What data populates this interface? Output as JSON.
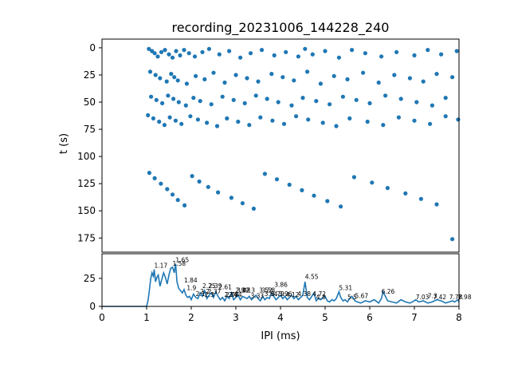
{
  "chart_data": [
    {
      "type": "scatter",
      "title": "recording_20231006_144228_240",
      "xlabel": "",
      "ylabel": "t (s)",
      "xlim": [
        0,
        8
      ],
      "ylim": [
        188,
        -8
      ],
      "y_inverted": true,
      "yticks": [
        "0",
        "25",
        "50",
        "75",
        "100",
        "125",
        "150",
        "175"
      ],
      "xticks_shown": false,
      "marker_color": "#1f77b4",
      "note_density": "events dense for IPI 1-2 ms, sparse out to 8 ms; gaps near t=10-15, t=85-90, t=100-105",
      "series": [
        {
          "x": [
            1.05,
            1.12,
            1.18,
            1.25,
            1.33,
            1.41,
            1.5,
            1.58,
            1.66,
            1.75,
            1.84,
            1.95,
            2.08,
            2.25,
            2.4,
            2.63,
            2.85,
            3.1,
            3.33,
            3.58,
            3.86,
            4.12,
            4.4,
            4.55,
            4.72,
            5.0,
            5.31,
            5.6,
            5.9,
            6.26,
            6.6,
            7.0,
            7.3,
            7.6,
            7.95,
            1.08,
            1.2,
            1.3,
            1.45,
            1.55,
            1.62,
            1.7,
            1.9,
            2.1,
            2.3,
            2.5,
            2.75,
            3.0,
            3.25,
            3.5,
            3.8,
            4.05,
            4.3,
            4.6,
            4.9,
            5.2,
            5.5,
            5.85,
            6.2,
            6.55,
            6.9,
            7.2,
            7.5,
            7.85,
            1.1,
            1.22,
            1.35,
            1.48,
            1.6,
            1.72,
            1.88,
            2.05,
            2.2,
            2.45,
            2.7,
            2.95,
            3.2,
            3.45,
            3.7,
            3.95,
            4.25,
            4.5,
            4.8,
            5.1,
            5.4,
            5.7,
            6.0,
            6.35,
            6.7,
            7.05,
            7.4,
            7.7,
            1.03,
            1.15,
            1.28,
            1.4,
            1.52,
            1.65,
            1.78,
            1.98,
            2.15,
            2.35,
            2.58,
            2.8,
            3.05,
            3.3,
            3.55,
            3.82,
            4.08,
            4.35,
            4.62,
            4.95,
            5.25,
            5.55,
            5.95,
            6.3,
            6.65,
            7.0,
            7.35,
            7.7,
            7.98,
            1.06,
            1.18,
            1.32,
            1.46,
            1.58,
            1.7,
            1.85,
            2.02,
            2.18,
            2.38,
            2.6,
            2.9,
            3.15,
            3.4,
            3.65,
            3.92,
            4.2,
            4.48,
            4.75,
            5.05,
            5.35,
            5.65,
            6.05,
            6.4,
            6.8,
            7.15,
            7.5,
            7.85
          ],
          "y": [
            1,
            3,
            5,
            8,
            4,
            2,
            6,
            9,
            3,
            7,
            2,
            5,
            8,
            4,
            1,
            6,
            3,
            9,
            5,
            2,
            7,
            4,
            8,
            1,
            6,
            3,
            9,
            2,
            5,
            8,
            4,
            7,
            2,
            6,
            3,
            22,
            25,
            28,
            31,
            24,
            27,
            30,
            33,
            26,
            29,
            23,
            32,
            25,
            28,
            31,
            24,
            27,
            30,
            22,
            33,
            26,
            29,
            23,
            32,
            25,
            28,
            31,
            24,
            27,
            45,
            48,
            51,
            44,
            47,
            50,
            53,
            46,
            49,
            52,
            45,
            48,
            51,
            44,
            47,
            50,
            53,
            46,
            49,
            52,
            45,
            48,
            51,
            44,
            47,
            50,
            53,
            46,
            62,
            65,
            68,
            71,
            64,
            67,
            70,
            63,
            66,
            69,
            72,
            65,
            68,
            71,
            64,
            67,
            70,
            63,
            66,
            69,
            72,
            65,
            68,
            71,
            64,
            67,
            70,
            63,
            66,
            115,
            120,
            125,
            130,
            135,
            140,
            145,
            118,
            123,
            128,
            133,
            138,
            143,
            148,
            116,
            121,
            126,
            131,
            136,
            141,
            146,
            119,
            124,
            129,
            134,
            139,
            144,
            176
          ]
        }
      ]
    },
    {
      "type": "line",
      "title": "",
      "xlabel": "IPI (ms)",
      "ylabel": "",
      "xlim": [
        0,
        8
      ],
      "ylim": [
        0,
        47
      ],
      "xticks": [
        "0",
        "1",
        "2",
        "3",
        "4",
        "5",
        "6",
        "7",
        "8"
      ],
      "yticks": [
        "0",
        "25"
      ],
      "line_color": "#1f77b4",
      "series": [
        {
          "x": [
            0,
            0.5,
            1.0,
            1.03,
            1.06,
            1.09,
            1.12,
            1.15,
            1.17,
            1.2,
            1.23,
            1.26,
            1.3,
            1.34,
            1.38,
            1.42,
            1.46,
            1.5,
            1.54,
            1.58,
            1.62,
            1.65,
            1.68,
            1.72,
            1.76,
            1.8,
            1.84,
            1.88,
            1.92,
            1.96,
            2.0,
            2.05,
            2.1,
            2.15,
            2.2,
            2.25,
            2.3,
            2.35,
            2.4,
            2.45,
            2.5,
            2.55,
            2.6,
            2.65,
            2.7,
            2.75,
            2.8,
            2.85,
            2.9,
            2.95,
            3.0,
            3.05,
            3.1,
            3.15,
            3.2,
            3.25,
            3.3,
            3.35,
            3.4,
            3.45,
            3.5,
            3.55,
            3.6,
            3.65,
            3.7,
            3.75,
            3.8,
            3.85,
            3.9,
            3.95,
            4.0,
            4.05,
            4.1,
            4.15,
            4.2,
            4.25,
            4.3,
            4.35,
            4.4,
            4.45,
            4.5,
            4.55,
            4.6,
            4.65,
            4.7,
            4.75,
            4.8,
            4.85,
            4.9,
            4.95,
            5.0,
            5.05,
            5.1,
            5.15,
            5.2,
            5.25,
            5.31,
            5.35,
            5.4,
            5.45,
            5.5,
            5.55,
            5.6,
            5.67,
            5.72,
            5.8,
            5.9,
            6.0,
            6.1,
            6.2,
            6.26,
            6.3,
            6.4,
            6.5,
            6.6,
            6.7,
            6.8,
            6.9,
            7.0,
            7.03,
            7.1,
            7.2,
            7.3,
            7.4,
            7.5,
            7.6,
            7.7,
            7.78,
            7.85,
            7.9,
            7.98,
            8.0
          ],
          "y": [
            0,
            0,
            0,
            5,
            14,
            24,
            30,
            27,
            33,
            22,
            26,
            28,
            18,
            24,
            30,
            26,
            20,
            28,
            34,
            35,
            30,
            38,
            22,
            16,
            14,
            12,
            15,
            10,
            8,
            9,
            6,
            11,
            8,
            7,
            12,
            9,
            14,
            7,
            10,
            12,
            8,
            13,
            9,
            6,
            8,
            5,
            9,
            7,
            12,
            6,
            8,
            10,
            6,
            9,
            8,
            7,
            9,
            6,
            8,
            10,
            7,
            5,
            9,
            6,
            8,
            7,
            12,
            9,
            6,
            8,
            10,
            7,
            9,
            6,
            8,
            10,
            7,
            9,
            6,
            8,
            10,
            22,
            8,
            6,
            9,
            12,
            5,
            7,
            6,
            8,
            9,
            5,
            4,
            6,
            5,
            7,
            13,
            8,
            5,
            6,
            4,
            7,
            9,
            5,
            4,
            3,
            5,
            4,
            6,
            3,
            7,
            13,
            5,
            4,
            3,
            6,
            4,
            3,
            5,
            6,
            4,
            5,
            3,
            4,
            6,
            5,
            3,
            4,
            5,
            4,
            6,
            4
          ]
        }
      ],
      "annotations": [
        {
          "x": 1.17,
          "y": 33,
          "text": "1.17"
        },
        {
          "x": 1.58,
          "y": 35,
          "text": "1.58"
        },
        {
          "x": 1.65,
          "y": 38,
          "text": "1.65"
        },
        {
          "x": 1.84,
          "y": 20,
          "text": "1.84"
        },
        {
          "x": 1.9,
          "y": 13,
          "text": "1.9"
        },
        {
          "x": 2.1,
          "y": 8,
          "text": "2.1"
        },
        {
          "x": 2.2,
          "y": 10,
          "text": "2.2"
        },
        {
          "x": 2.25,
          "y": 15,
          "text": "2.25"
        },
        {
          "x": 2.3,
          "y": 7,
          "text": "2.3"
        },
        {
          "x": 2.37,
          "y": 10,
          "text": "2.37"
        },
        {
          "x": 2.39,
          "y": 15,
          "text": "2.39"
        },
        {
          "x": 2.61,
          "y": 14,
          "text": "2.61"
        },
        {
          "x": 2.74,
          "y": 7,
          "text": "2.74"
        },
        {
          "x": 2.77,
          "y": 7,
          "text": "2.77"
        },
        {
          "x": 2.84,
          "y": 7,
          "text": "2.84"
        },
        {
          "x": 2.99,
          "y": 11,
          "text": "2.99"
        },
        {
          "x": 3.02,
          "y": 11,
          "text": "3.02"
        },
        {
          "x": 3.13,
          "y": 11,
          "text": "3.13"
        },
        {
          "x": 3.33,
          "y": 6,
          "text": "3.33"
        },
        {
          "x": 3.52,
          "y": 11,
          "text": "3.52"
        },
        {
          "x": 3.58,
          "y": 11,
          "text": "3.58"
        },
        {
          "x": 3.64,
          "y": 8,
          "text": "3.64"
        },
        {
          "x": 3.79,
          "y": 8,
          "text": "3.79"
        },
        {
          "x": 3.86,
          "y": 16,
          "text": "3.86"
        },
        {
          "x": 3.96,
          "y": 8,
          "text": "3.96"
        },
        {
          "x": 4.12,
          "y": 7,
          "text": "4.12"
        },
        {
          "x": 4.38,
          "y": 8,
          "text": "4.38"
        },
        {
          "x": 4.55,
          "y": 23,
          "text": "4.55"
        },
        {
          "x": 4.72,
          "y": 8,
          "text": "4.72"
        },
        {
          "x": 4.8,
          "y": 5,
          "text": "4.8"
        },
        {
          "x": 5.31,
          "y": 13,
          "text": "5.31"
        },
        {
          "x": 5.5,
          "y": 5,
          "text": "5.5"
        },
        {
          "x": 5.67,
          "y": 6,
          "text": "5.67"
        },
        {
          "x": 6.26,
          "y": 10,
          "text": "6.26"
        },
        {
          "x": 7.03,
          "y": 5,
          "text": "7.03"
        },
        {
          "x": 7.3,
          "y": 6,
          "text": "7.3"
        },
        {
          "x": 7.42,
          "y": 5,
          "text": "7.42"
        },
        {
          "x": 7.78,
          "y": 5,
          "text": "7.78"
        },
        {
          "x": 7.98,
          "y": 5,
          "text": "7.98"
        }
      ]
    }
  ]
}
